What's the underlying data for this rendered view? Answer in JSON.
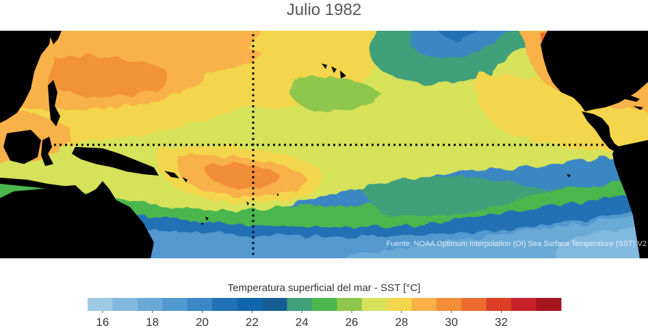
{
  "title": "Julio 1982",
  "source_note": "Fuente: NOAA Optimum Interpolation (OI) Sea Surface Temperature (SST) V2",
  "map": {
    "type": "sea-surface-temperature",
    "region": "Tropical Pacific Ocean",
    "month": "July 1982",
    "land_color": "#000000",
    "reference_lines": [
      "equator",
      "date-line"
    ]
  },
  "colorbar": {
    "title": "Temperatura superficial del mar - SST  [°C]",
    "colors": [
      "#9ecae1",
      "#82b9de",
      "#6aaad6",
      "#5299d0",
      "#3a87c4",
      "#2171b5",
      "#0f66ad",
      "#165e95",
      "#41a07a",
      "#4cb64e",
      "#8ec74b",
      "#d6e25a",
      "#f3d64c",
      "#f9b148",
      "#f28e37",
      "#ec6a2c",
      "#dc3e26",
      "#c9212b",
      "#a5151f"
    ],
    "tick_labels": [
      "16",
      "18",
      "20",
      "22",
      "24",
      "26",
      "28",
      "30",
      "32"
    ]
  }
}
